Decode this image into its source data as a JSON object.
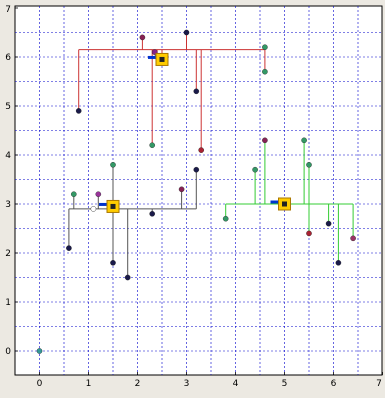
{
  "chart_data": {
    "type": "scatter",
    "xlim": [
      -0.5,
      7
    ],
    "ylim": [
      -0.5,
      7
    ],
    "x_ticks": [
      "0",
      "1",
      "2",
      "3",
      "4",
      "5",
      "6",
      "7"
    ],
    "y_ticks": [
      "0",
      "1",
      "2",
      "3",
      "4",
      "5",
      "6",
      "7"
    ],
    "grid": true,
    "grid_style": "dashed",
    "colors": {
      "plot_background": "#ffffff",
      "figure_background": "#ece9e2",
      "grid": "#0000cc",
      "red_cluster": "#cc3333",
      "gray_cluster": "#555555",
      "green_cluster": "#33cc33",
      "center_fill": "#ffcc00",
      "connector": "#0033cc"
    },
    "clusters": [
      {
        "id": "red",
        "color": "#cc3333",
        "center": [
          2.5,
          5.95
        ],
        "bus_y": 6.15,
        "points": [
          {
            "x": 0.8,
            "y": 4.9,
            "color": "#1a1a4a"
          },
          {
            "x": 2.1,
            "y": 6.4,
            "color": "#882255"
          },
          {
            "x": 2.35,
            "y": 6.1,
            "color": "#882288"
          },
          {
            "x": 2.4,
            "y": 6.0,
            "color": "#6666cc"
          },
          {
            "x": 2.3,
            "y": 4.2,
            "color": "#339966"
          },
          {
            "x": 3.0,
            "y": 6.5,
            "color": "#1a1a4a"
          },
          {
            "x": 3.2,
            "y": 5.3,
            "color": "#1a1a4a"
          },
          {
            "x": 3.3,
            "y": 4.1,
            "color": "#aa2233"
          },
          {
            "x": 4.6,
            "y": 6.2,
            "color": "#339966"
          },
          {
            "x": 4.6,
            "y": 5.7,
            "color": "#339966"
          }
        ]
      },
      {
        "id": "gray",
        "color": "#555555",
        "center": [
          1.5,
          2.95
        ],
        "bus_y": 2.9,
        "points": [
          {
            "x": 0.6,
            "y": 2.1,
            "color": "#1a1a4a"
          },
          {
            "x": 0.7,
            "y": 3.2,
            "color": "#339966"
          },
          {
            "x": 1.1,
            "y": 2.9,
            "color": "#ffffff"
          },
          {
            "x": 1.2,
            "y": 3.2,
            "color": "#993399"
          },
          {
            "x": 1.5,
            "y": 3.8,
            "color": "#339966"
          },
          {
            "x": 1.5,
            "y": 1.8,
            "color": "#1a1a4a"
          },
          {
            "x": 1.8,
            "y": 1.5,
            "color": "#1a1a4a"
          },
          {
            "x": 2.3,
            "y": 2.8,
            "color": "#1a1a4a"
          },
          {
            "x": 2.9,
            "y": 3.3,
            "color": "#882255"
          },
          {
            "x": 3.2,
            "y": 3.7,
            "color": "#1a1a4a"
          }
        ]
      },
      {
        "id": "green",
        "color": "#33cc33",
        "center": [
          5.0,
          3.0
        ],
        "bus_y": 3.0,
        "points": [
          {
            "x": 3.8,
            "y": 2.7,
            "color": "#339966"
          },
          {
            "x": 4.4,
            "y": 3.7,
            "color": "#339966"
          },
          {
            "x": 4.6,
            "y": 4.3,
            "color": "#882255"
          },
          {
            "x": 5.4,
            "y": 4.3,
            "color": "#339966"
          },
          {
            "x": 5.5,
            "y": 3.8,
            "color": "#339966"
          },
          {
            "x": 5.5,
            "y": 2.4,
            "color": "#aa2233"
          },
          {
            "x": 5.9,
            "y": 2.6,
            "color": "#1a1a4a"
          },
          {
            "x": 6.1,
            "y": 1.8,
            "color": "#1a1a4a"
          },
          {
            "x": 6.4,
            "y": 2.3,
            "color": "#993366"
          }
        ]
      }
    ],
    "isolated_points": [
      {
        "x": 0.0,
        "y": 0.0,
        "color": "#339999"
      }
    ],
    "title": "",
    "xlabel": "",
    "ylabel": ""
  }
}
